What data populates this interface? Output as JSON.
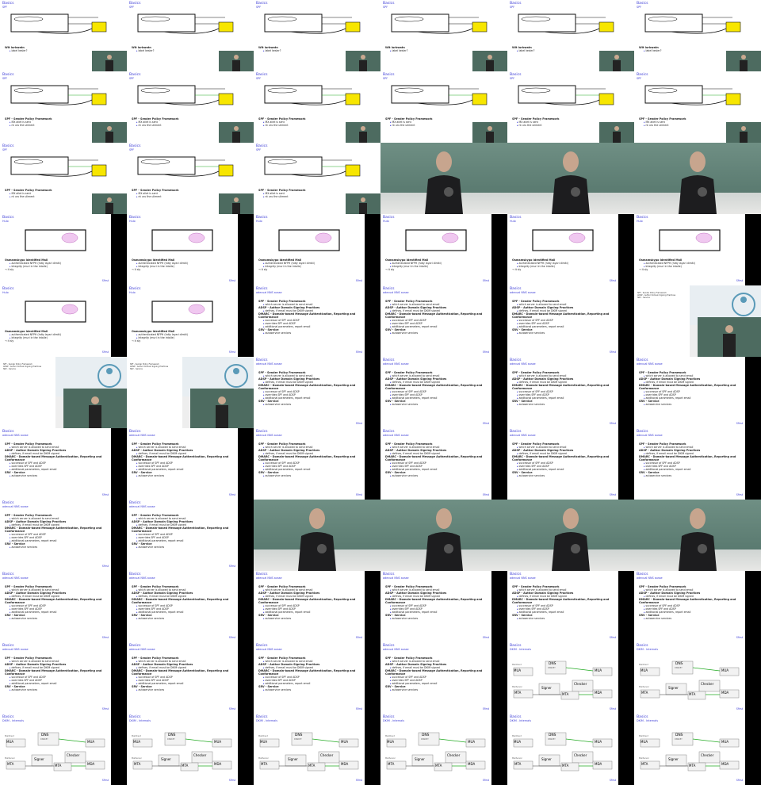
{
  "slide_header": {
    "title": "Basics",
    "brand": "Sfirst"
  },
  "sections": {
    "spf_intro": {
      "subtitle": "SPF",
      "heading_a": "Wit lurbwatn",
      "bullet_a": "label kesler?",
      "heading_b": "SPF - Sender Policy Framework",
      "bullets_b": [
        "MX allet is sent",
        "nt uru the uliment"
      ]
    },
    "wwmd": {
      "subtitle": "Hulo",
      "heading": "Osmamskypo Identified Mail",
      "bullets": [
        "authenticated NFPH (hdty layari dimiti)",
        "Integrity (muri in the intalle)",
        "→ it sly"
      ]
    },
    "policy": {
      "subtitle": "adecual NNS ausse",
      "items": [
        {
          "h": "SPF - Sender Policy Framework",
          "b": [
            "which server is allowed to send email"
          ]
        },
        {
          "h": "ADSP - Author Domain Signing Practices",
          "b": [
            "defines, if email must be DKIM signed"
          ]
        },
        {
          "h": "DMARC - Domain-based Message Authentication, Reporting and Conformance",
          "b": [
            "successor of SPF and ADSP",
            "overrides SPF and ADSP",
            "additional parameters, report email"
          ]
        },
        {
          "h": "SRV - Service",
          "b": [
            "autoservice services"
          ]
        }
      ]
    },
    "dkim": {
      "subtitle": "DKIM - Internals",
      "nodes": {
        "dns": "DNS",
        "dns_sub": "DNSKEY",
        "mua": "MUA",
        "mua2": "MUA",
        "signer": "Signer",
        "checker": "Checker",
        "mta": "MTA",
        "mta2": "MTA",
        "mda": "MDA",
        "mailclient": "MailClient",
        "mailserver": "MailServer"
      }
    }
  },
  "tiles": [
    [
      "slideA",
      "slideA",
      "slideA",
      "slideA",
      "slideA",
      "slideA"
    ],
    [
      "slideB",
      "slideB",
      "slideB",
      "slideB",
      "slideB",
      "slideB"
    ],
    [
      "slideB",
      "slideB",
      "slideB",
      "cam",
      "cam",
      "cam"
    ],
    [
      "slideC",
      "slideC",
      "slideC",
      "slideC",
      "slideC",
      "slideC"
    ],
    [
      "slideC",
      "slideC",
      "slideD",
      "slideD",
      "slideD",
      "shot"
    ],
    [
      "shot",
      "shot",
      "slideD",
      "slideD",
      "slideD",
      "slideD"
    ],
    [
      "slideD",
      "slideD",
      "slideD",
      "slideD",
      "slideD",
      "slideD"
    ],
    [
      "slideD",
      "slideD",
      "cam",
      "cam",
      "cam",
      "cam"
    ],
    [
      "slideD",
      "slideD",
      "slideD",
      "slideD",
      "slideD",
      "slideD"
    ],
    [
      "slideD",
      "slideD",
      "slideD",
      "slideD",
      "slideE",
      "slideE"
    ],
    [
      "slideE",
      "slideE",
      "slideE",
      "slideE",
      "slideE",
      "slideE"
    ]
  ]
}
